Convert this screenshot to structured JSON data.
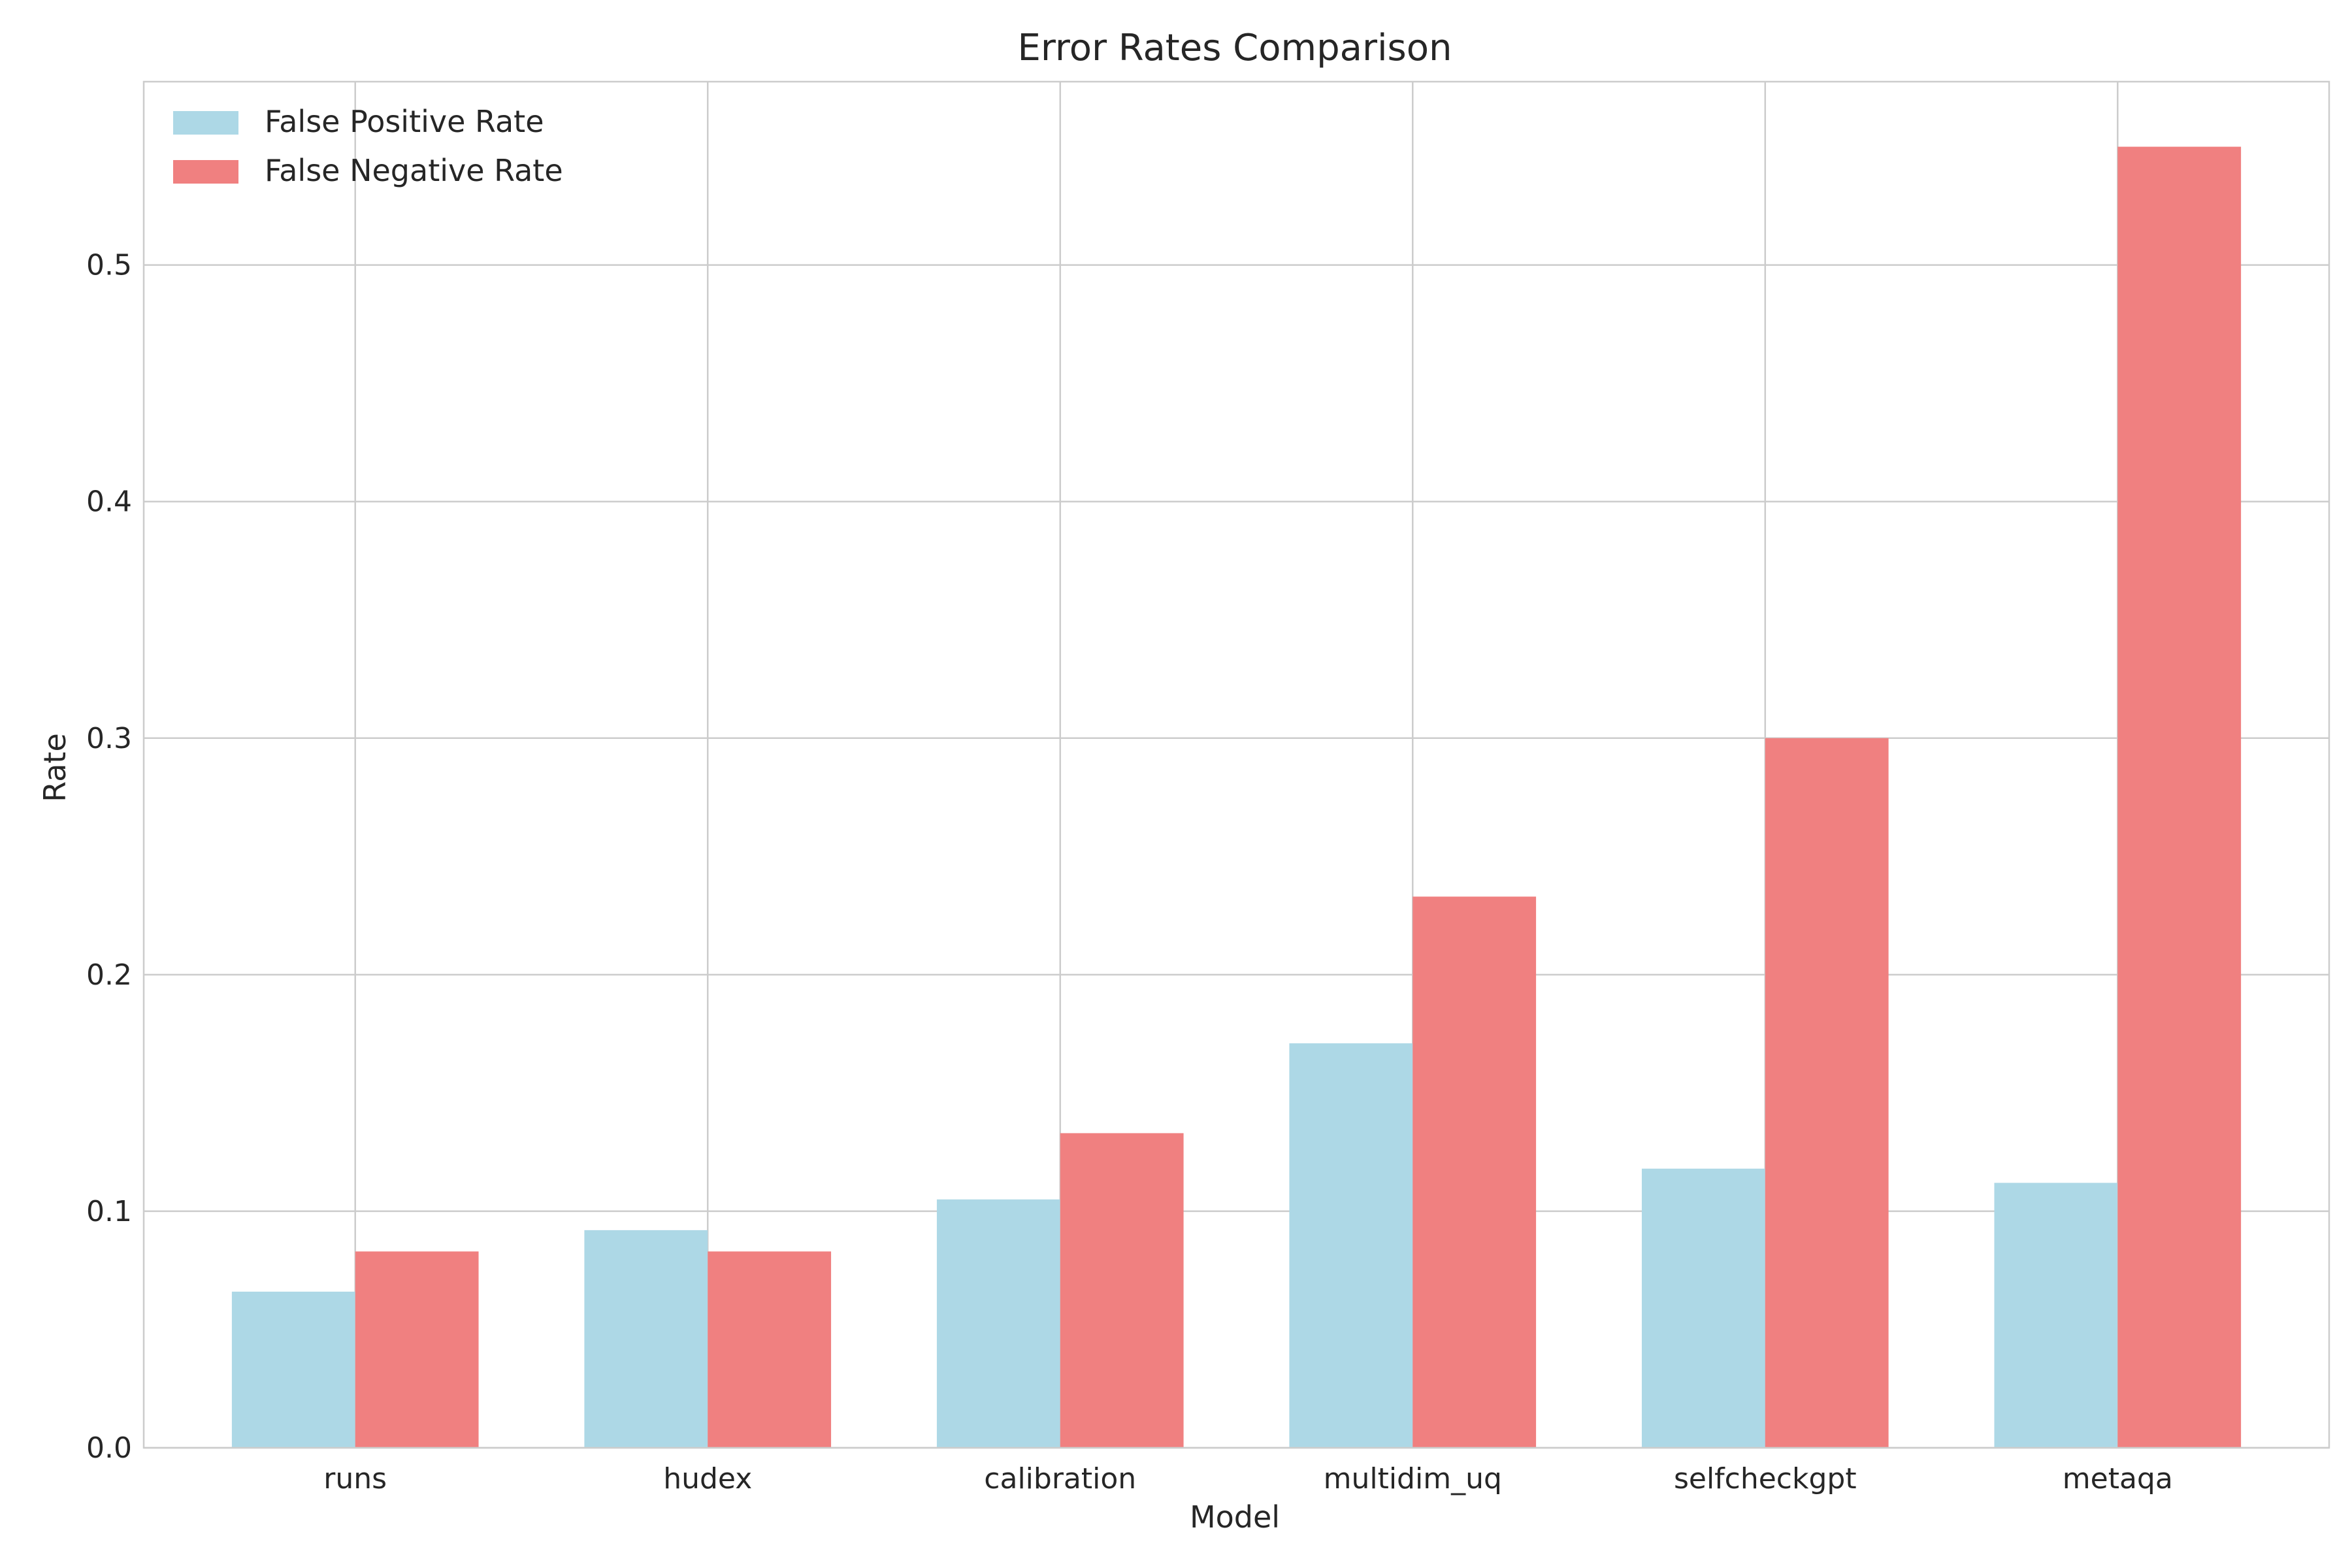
{
  "chart_data": {
    "type": "bar",
    "title": "Error Rates Comparison",
    "xlabel": "Model",
    "ylabel": "Rate",
    "categories": [
      "runs",
      "hudex",
      "calibration",
      "multidim_uq",
      "selfcheckgpt",
      "metaqa"
    ],
    "series": [
      {
        "name": "False Positive Rate",
        "color": "#add8e6",
        "values": [
          0.066,
          0.092,
          0.105,
          0.171,
          0.118,
          0.112
        ]
      },
      {
        "name": "False Negative Rate",
        "color": "#f08080",
        "values": [
          0.083,
          0.083,
          0.133,
          0.233,
          0.3,
          0.55
        ]
      }
    ],
    "yticks": [
      "0.0",
      "0.1",
      "0.2",
      "0.3",
      "0.4",
      "0.5"
    ],
    "ylim": [
      0,
      0.5775
    ],
    "grid": true,
    "legend_position": "top-left"
  }
}
